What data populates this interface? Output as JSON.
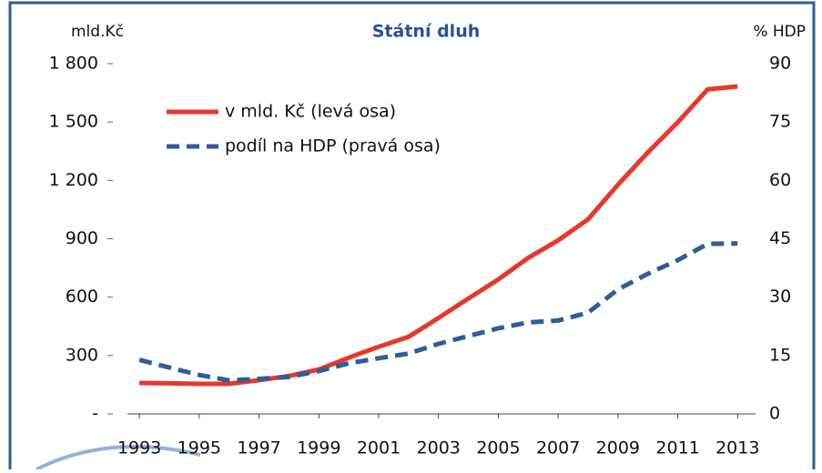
{
  "chart_data": {
    "type": "line",
    "title": "Státní dluh",
    "ylabel": "mld.Kč",
    "y2label": "% HDP",
    "x": [
      1993,
      1994,
      1995,
      1996,
      1997,
      1998,
      1999,
      2000,
      2001,
      2002,
      2003,
      2004,
      2005,
      2006,
      2007,
      2008,
      2009,
      2010,
      2011,
      2012,
      2013
    ],
    "series": [
      {
        "name": "v mld. Kč (levá osa)",
        "color": "#e8372a",
        "dash": "solid",
        "values": [
          159,
          157,
          154,
          155,
          173,
          195,
          228,
          289,
          345,
          396,
          493,
          593,
          691,
          802,
          892,
          1000,
          1178,
          1344,
          1499,
          1668,
          1683
        ]
      },
      {
        "name": "podíl na HDP (pravá osa)",
        "color": "#2f5d9a",
        "dash": "dashed",
        "axis": "y2",
        "values": [
          13.9,
          11.9,
          10.0,
          8.6,
          9.0,
          9.5,
          11.0,
          13.0,
          14.3,
          15.5,
          18.0,
          20.0,
          22.0,
          23.5,
          24.0,
          26.0,
          32.0,
          36.0,
          39.5,
          43.7,
          43.8
        ]
      }
    ],
    "xlim": [
      1992.6,
      2013.6
    ],
    "xticks": [
      1993,
      1995,
      1997,
      1999,
      2001,
      2003,
      2005,
      2007,
      2009,
      2011,
      2013
    ],
    "ylim": [
      0,
      1800
    ],
    "yticks": [
      {
        "value": 0,
        "label": "-"
      },
      300,
      600,
      900,
      {
        "value": 1200,
        "label": "1 200"
      },
      {
        "value": 1500,
        "label": "1 500"
      },
      {
        "value": 1800,
        "label": "1 800"
      }
    ],
    "y2lim": [
      0,
      90
    ],
    "y2ticks": [
      0,
      15,
      30,
      45,
      60,
      75,
      90
    ],
    "legend": "upper left",
    "grid": false
  }
}
